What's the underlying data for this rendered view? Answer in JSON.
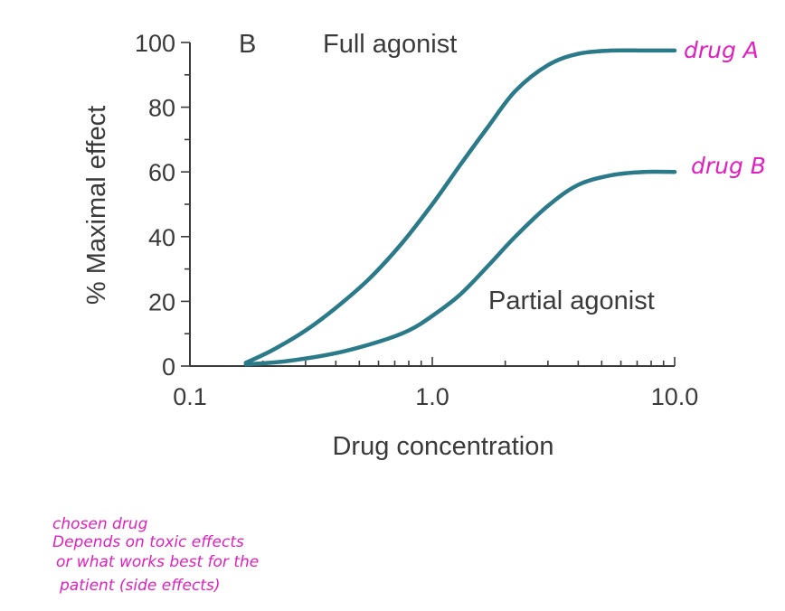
{
  "chart_data": {
    "type": "line",
    "panel_label": "B",
    "xlabel": "Drug concentration",
    "ylabel": "% Maximal effect",
    "x_scale": "log",
    "xlim": [
      0.1,
      10.0
    ],
    "ylim": [
      0,
      100
    ],
    "x_ticks": [
      "0.1",
      "1.0",
      "10.0"
    ],
    "y_ticks": [
      "0",
      "20",
      "40",
      "60",
      "80",
      "100"
    ],
    "series": [
      {
        "name": "Full agonist",
        "x": [
          0.17,
          0.22,
          0.3,
          0.4,
          0.55,
          0.75,
          1.0,
          1.3,
          1.7,
          2.2,
          3.0,
          4.0,
          5.5,
          7.5,
          10.0
        ],
        "y": [
          1,
          5,
          11,
          18,
          27,
          38,
          50,
          62,
          74,
          85,
          93,
          96.5,
          97.5,
          97.5,
          97.5
        ]
      },
      {
        "name": "Partial agonist",
        "x": [
          0.17,
          0.25,
          0.4,
          0.6,
          0.8,
          1.0,
          1.3,
          1.7,
          2.2,
          3.0,
          4.0,
          5.5,
          7.5,
          10.0
        ],
        "y": [
          0.5,
          1.5,
          4,
          7.5,
          11,
          15.5,
          22,
          31,
          40,
          49.5,
          56,
          59,
          60,
          60
        ]
      }
    ],
    "annotations": {
      "drug_a": "drug A",
      "drug_b": "drug B",
      "note": [
        "chosen drug",
        "Depends on toxic effects",
        "or what works best for the",
        "patient (side effects)"
      ]
    }
  }
}
